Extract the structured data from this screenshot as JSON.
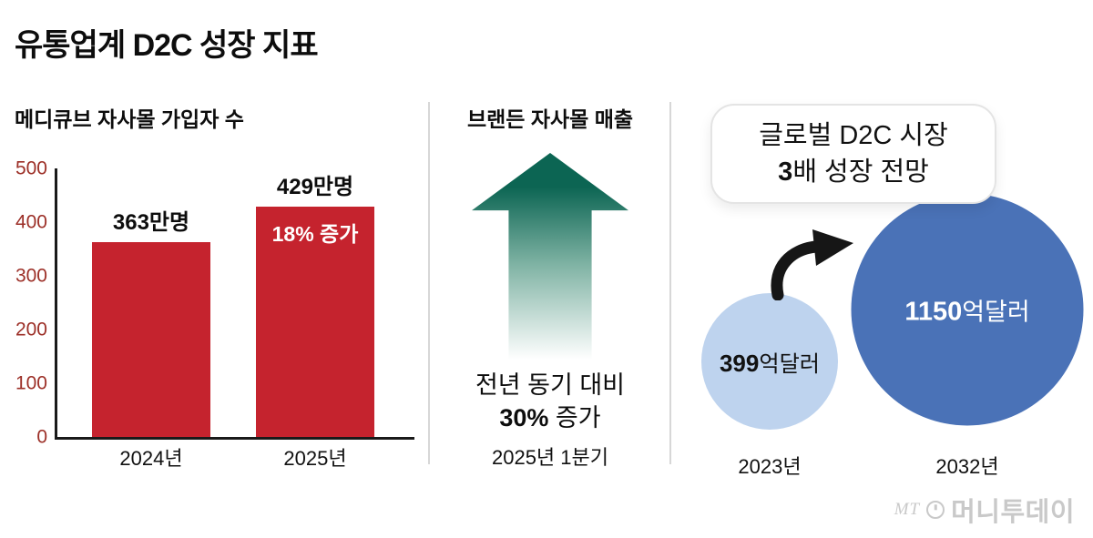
{
  "page_title": "유통업계 D2C 성장 지표",
  "watermark": {
    "prefix": "MT",
    "name": "머니투데이"
  },
  "chart_data": [
    {
      "type": "bar",
      "title": "메디큐브 자사몰 가입자 수",
      "unit": "만명",
      "categories": [
        "2024년",
        "2025년"
      ],
      "values": [
        363,
        429
      ],
      "value_labels": [
        "363만명",
        "429만명"
      ],
      "bar_annotation": "18% 증가",
      "ylim": [
        0,
        500
      ],
      "yticks": [
        0,
        100,
        200,
        300,
        400,
        500
      ],
      "grid": false,
      "legend": false,
      "bar_color": "#c5232e",
      "axis_label_color": "#9c2f27"
    },
    {
      "type": "arrow-indicator",
      "title": "브랜든 자사몰 매출",
      "annotation_line1": "전년 동기 대비",
      "annotation_value": "30%",
      "annotation_suffix": " 증가",
      "category": "2025년 1분기",
      "arrow_colors": {
        "top": "#0c6553",
        "mid": "#7eb2a3",
        "bottom": "#ffffff"
      }
    },
    {
      "type": "bubble",
      "callout_line1": "글로벌 D2C 시장",
      "callout_line2_bold": "3",
      "callout_line2_rest": "배 성장 전망",
      "points": [
        {
          "category": "2023년",
          "value": 399,
          "unit": "억달러",
          "color": "#bed3ee",
          "text_color": "#111111"
        },
        {
          "category": "2032년",
          "value": 1150,
          "unit": "억달러",
          "color": "#4a72b7",
          "text_color": "#ffffff"
        }
      ]
    }
  ]
}
